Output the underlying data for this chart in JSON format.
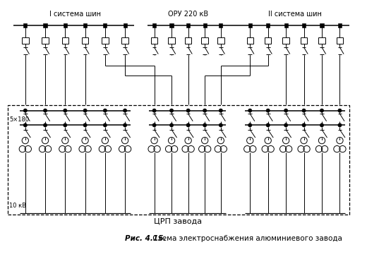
{
  "title_bold": "Рис. 4.15.",
  "title_desc": " Схема электроснабжения алюминиевого завода",
  "label_sys1": "I система шин",
  "label_oru": "ОРУ 220 кВ",
  "label_sys2": "II система шин",
  "label_crp": "ЦРП завода",
  "label_5x180": "5×180",
  "label_10kv": "10 кВ",
  "bg_color": "#ffffff",
  "line_color": "#000000",
  "fig_width": 5.37,
  "fig_height": 3.67,
  "dpi": 100
}
